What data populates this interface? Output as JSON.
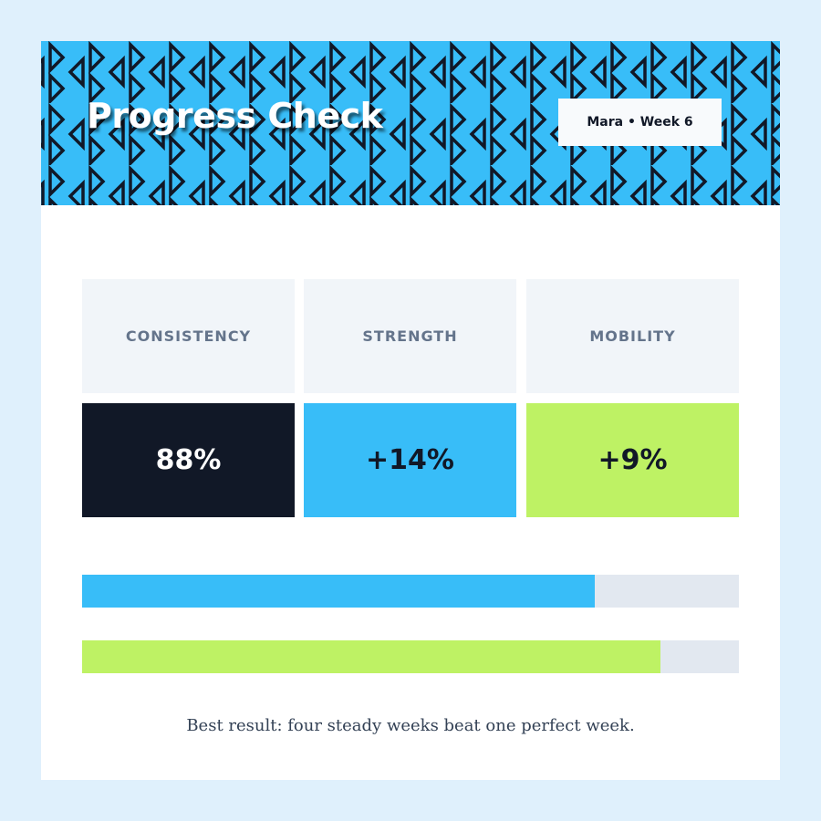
{
  "header": {
    "title": "Progress Check",
    "badge": "Mara • Week 6"
  },
  "stats": [
    {
      "label": "CONSISTENCY",
      "value": "88%",
      "color": "#111827",
      "text_color": "#ffffff"
    },
    {
      "label": "STRENGTH",
      "value": "+14%",
      "color": "#38bdf8",
      "text_color": "#111827"
    },
    {
      "label": "MOBILITY",
      "value": "+9%",
      "color": "#bef264",
      "text_color": "#111827"
    }
  ],
  "progress_bars": {
    "range": [
      0,
      100
    ],
    "bars": [
      {
        "value": 78,
        "color": "#38bdf8"
      },
      {
        "value": 88,
        "color": "#bef264"
      }
    ]
  },
  "footer": "Best result: four steady weeks beat one perfect week."
}
